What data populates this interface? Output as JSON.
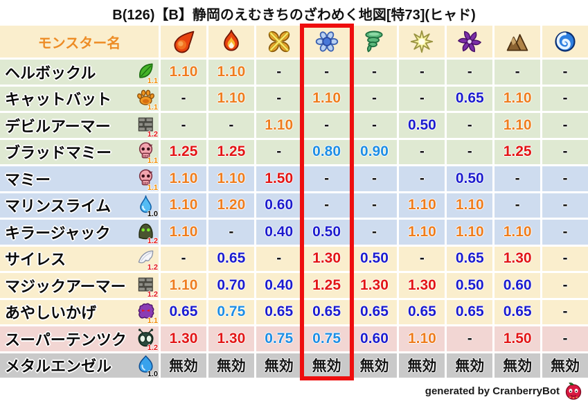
{
  "title": "B(126)【B】静岡のえむきちのざわめく地図[特73](ヒャド)",
  "footer": {
    "text": "generated by CranberryBot",
    "icon": "cranberry-bot-icon"
  },
  "colors": {
    "header_bg": "#FAEECD",
    "header_text": "#ED8C25",
    "row_green": "#DFE9D2",
    "row_blue": "#CEDCEF",
    "row_cream": "#FAEECD",
    "row_pink": "#F2D6D3",
    "row_gray": "#C9C9C9",
    "value_strong_up": "#E21515",
    "value_up": "#EE7D1E",
    "value_slight_down": "#1E8EE4",
    "value_down": "#1C1CCE",
    "highlight_box": "#EE0E0E"
  },
  "chart_data": {
    "type": "table",
    "title": "B(126)【B】静岡のえむきちのざわめく地図[特73](ヒャド)",
    "name_header": "モンスター名",
    "immune_label": "無効",
    "elements": [
      {
        "id": "element-1",
        "icon": "fireball-icon",
        "highlighted": false
      },
      {
        "id": "element-2",
        "icon": "flame-icon",
        "highlighted": false
      },
      {
        "id": "element-3",
        "icon": "burst-icon",
        "highlighted": false
      },
      {
        "id": "element-4",
        "icon": "snowflake-icon",
        "highlighted": true
      },
      {
        "id": "element-5",
        "icon": "tornado-icon",
        "highlighted": false
      },
      {
        "id": "element-6",
        "icon": "spark-icon",
        "highlighted": false
      },
      {
        "id": "element-7",
        "icon": "pinwheel-icon",
        "highlighted": false
      },
      {
        "id": "element-8",
        "icon": "mountain-icon",
        "highlighted": false
      },
      {
        "id": "element-9",
        "icon": "wave-icon",
        "highlighted": false
      }
    ],
    "rows": [
      {
        "name": "ヘルボックル",
        "type_icon": "leaf-icon",
        "type_multiplier": "1.1",
        "group": "green",
        "values": [
          "1.10",
          "1.10",
          "-",
          "-",
          "-",
          "-",
          "-",
          "-",
          "-"
        ]
      },
      {
        "name": "キャットバット",
        "type_icon": "paw-icon",
        "type_multiplier": "1.1",
        "group": "green",
        "values": [
          "-",
          "1.10",
          "-",
          "1.10",
          "-",
          "-",
          "0.65",
          "1.10",
          "-"
        ]
      },
      {
        "name": "デビルアーマー",
        "type_icon": "brick-icon",
        "type_multiplier": "1.2",
        "group": "green",
        "values": [
          "-",
          "-",
          "1.10",
          "-",
          "-",
          "0.50",
          "-",
          "1.10",
          "-"
        ]
      },
      {
        "name": "ブラッドマミー",
        "type_icon": "skull-icon",
        "type_multiplier": "1.1",
        "group": "green",
        "values": [
          "1.25",
          "1.25",
          "-",
          "0.80",
          "0.90",
          "-",
          "-",
          "1.25",
          "-"
        ]
      },
      {
        "name": "マミー",
        "type_icon": "skull-icon",
        "type_multiplier": "1.1",
        "group": "blue",
        "values": [
          "1.10",
          "1.10",
          "1.50",
          "-",
          "-",
          "-",
          "0.50",
          "-",
          "-"
        ]
      },
      {
        "name": "マリンスライム",
        "type_icon": "droplet-icon",
        "type_multiplier": "1.0",
        "group": "blue",
        "values": [
          "1.10",
          "1.20",
          "0.60",
          "-",
          "-",
          "1.10",
          "1.10",
          "-",
          "-"
        ]
      },
      {
        "name": "キラージャック",
        "type_icon": "hood-icon",
        "type_multiplier": "1.2",
        "group": "blue",
        "values": [
          "1.10",
          "-",
          "0.40",
          "0.50",
          "-",
          "1.10",
          "1.10",
          "1.10",
          "-"
        ]
      },
      {
        "name": "サイレス",
        "type_icon": "wing-icon",
        "type_multiplier": "1.2",
        "group": "cream",
        "values": [
          "-",
          "0.65",
          "-",
          "1.30",
          "0.50",
          "-",
          "0.65",
          "1.30",
          "-"
        ]
      },
      {
        "name": "マジックアーマー",
        "type_icon": "brick-icon",
        "type_multiplier": "1.2",
        "group": "cream",
        "values": [
          "1.10",
          "0.70",
          "0.40",
          "1.25",
          "1.30",
          "1.30",
          "0.50",
          "0.60",
          "-"
        ]
      },
      {
        "name": "あやしいかげ",
        "type_icon": "shade-icon",
        "type_multiplier": "1.1",
        "group": "cream",
        "values": [
          "0.65",
          "0.75",
          "0.65",
          "0.65",
          "0.65",
          "0.65",
          "0.65",
          "0.65",
          "-"
        ]
      },
      {
        "name": "スーパーテンツク",
        "type_icon": "bug-icon",
        "type_multiplier": "1.2",
        "group": "pink",
        "values": [
          "1.30",
          "1.30",
          "0.75",
          "0.75",
          "0.60",
          "1.10",
          "-",
          "1.50",
          "-"
        ]
      },
      {
        "name": "メタルエンゼル",
        "type_icon": "slime-icon",
        "type_multiplier": "1.0",
        "group": "gray",
        "values": [
          "無効",
          "無効",
          "無効",
          "無効",
          "無効",
          "無効",
          "無効",
          "無効",
          "無効"
        ]
      }
    ]
  }
}
